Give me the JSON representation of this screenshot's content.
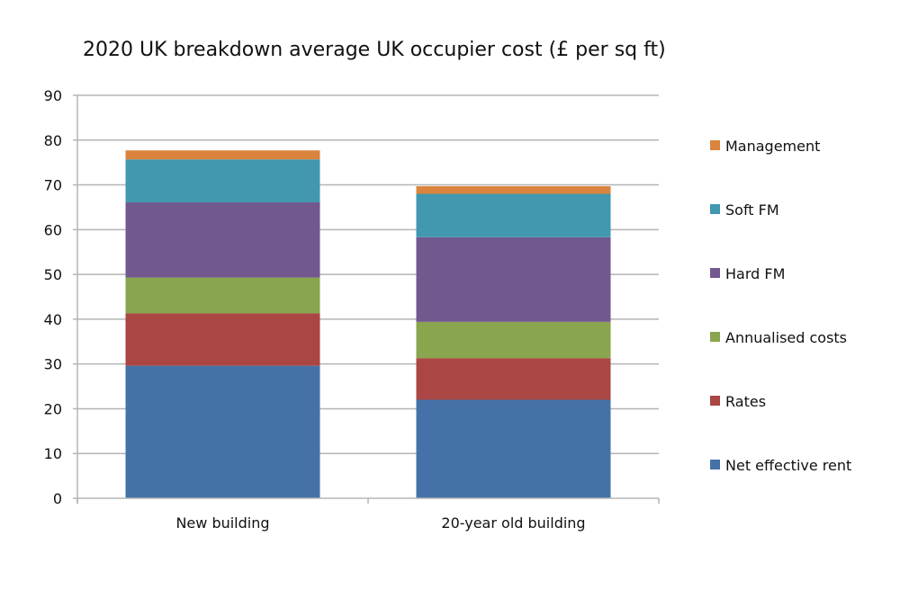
{
  "chart_data": {
    "type": "bar",
    "stacked": true,
    "title": "2020 UK breakdown average UK occupier cost (£ per sq ft)",
    "xlabel": "",
    "ylabel": "",
    "ylim": [
      0,
      90
    ],
    "yticks": [
      0,
      10,
      20,
      30,
      40,
      50,
      60,
      70,
      80,
      90
    ],
    "grid": true,
    "legend": "right",
    "categories": [
      "New building",
      "20-year old building"
    ],
    "series": [
      {
        "name": "Net effective rent",
        "color": "#4472a8",
        "values": [
          29.6,
          22.0
        ]
      },
      {
        "name": "Rates",
        "color": "#aa4644",
        "values": [
          11.7,
          9.3
        ]
      },
      {
        "name": "Annualised costs",
        "color": "#89a54e",
        "values": [
          8.0,
          8.1
        ]
      },
      {
        "name": "Hard FM",
        "color": "#71588f",
        "values": [
          16.8,
          18.9
        ]
      },
      {
        "name": "Soft FM",
        "color": "#4198af",
        "values": [
          9.6,
          9.7
        ]
      },
      {
        "name": "Management",
        "color": "#db843d",
        "values": [
          2.0,
          1.7
        ]
      }
    ]
  }
}
